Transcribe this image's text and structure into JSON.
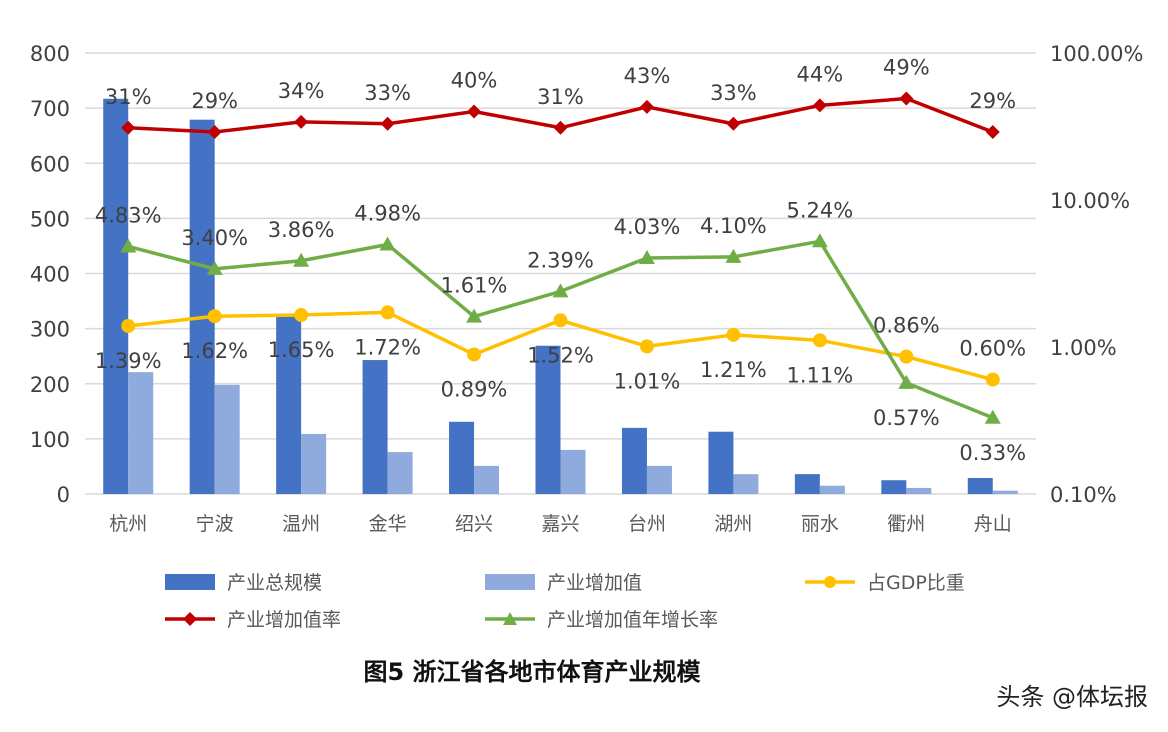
{
  "chart_data": {
    "type": "bar",
    "title": "图5 浙江省各地市体育产业规模",
    "categories": [
      "杭州",
      "宁波",
      "温州",
      "金华",
      "绍兴",
      "嘉兴",
      "台州",
      "湖州",
      "丽水",
      "衢州",
      "舟山"
    ],
    "y_left": {
      "min": 0,
      "max": 800,
      "ticks": [
        "0",
        "100",
        "200",
        "300",
        "400",
        "500",
        "600",
        "700",
        "800"
      ]
    },
    "y_right": {
      "scale": "log",
      "min": 0.1,
      "max": 100,
      "ticks": [
        "0.10%",
        "1.00%",
        "10.00%",
        "100.00%"
      ]
    },
    "grid": true,
    "legend_placement": "bottom",
    "series": [
      {
        "name": "产业总规模",
        "type": "bar",
        "axis": "left",
        "color": "#4472C4",
        "values": [
          717,
          679,
          325,
          243,
          131,
          269,
          120,
          113,
          36,
          25,
          29
        ]
      },
      {
        "name": "产业增加值",
        "type": "bar",
        "axis": "left",
        "color": "#8FAADC",
        "values": [
          221,
          198,
          109,
          76,
          51,
          80,
          51,
          36,
          15,
          11,
          6
        ]
      },
      {
        "name": "占GDP比重",
        "type": "line",
        "axis": "right",
        "color": "#FFC000",
        "marker": "circle",
        "values": [
          1.39,
          1.62,
          1.65,
          1.72,
          0.89,
          1.52,
          1.01,
          1.21,
          1.11,
          0.86,
          0.6
        ],
        "labels": [
          "1.39%",
          "1.62%",
          "1.65%",
          "1.72%",
          "0.89%",
          "1.52%",
          "1.01%",
          "1.21%",
          "1.11%",
          "0.86%",
          "0.60%"
        ],
        "label_pos": [
          "below",
          "below",
          "below",
          "below",
          "below",
          "below",
          "below",
          "below",
          "below",
          "above",
          "above"
        ]
      },
      {
        "name": "产业增加值率",
        "type": "line",
        "axis": "right",
        "color": "#C00000",
        "marker": "diamond",
        "values": [
          31,
          29,
          34,
          33,
          40,
          31,
          43,
          33,
          44,
          49,
          29
        ],
        "labels": [
          "31%",
          "29%",
          "34%",
          "33%",
          "40%",
          "31%",
          "43%",
          "33%",
          "44%",
          "49%",
          "29%"
        ],
        "label_pos": [
          "above",
          "above",
          "above",
          "above",
          "above",
          "above",
          "above",
          "above",
          "above",
          "above",
          "above"
        ]
      },
      {
        "name": "产业增加值年增长率",
        "type": "line",
        "axis": "right",
        "color": "#70AD47",
        "marker": "triangle",
        "values": [
          4.83,
          3.4,
          3.86,
          4.98,
          1.61,
          2.39,
          4.03,
          4.1,
          5.24,
          0.57,
          0.33
        ],
        "labels": [
          "4.83%",
          "3.40%",
          "3.86%",
          "4.98%",
          "1.61%",
          "2.39%",
          "4.03%",
          "4.10%",
          "5.24%",
          "0.57%",
          "0.33%"
        ],
        "label_pos": [
          "above",
          "above",
          "above",
          "above",
          "above",
          "above",
          "above",
          "above",
          "above",
          "below",
          "below"
        ]
      }
    ],
    "legend_order": [
      0,
      1,
      2,
      3,
      4
    ]
  },
  "watermark": "头条 @体坛报"
}
